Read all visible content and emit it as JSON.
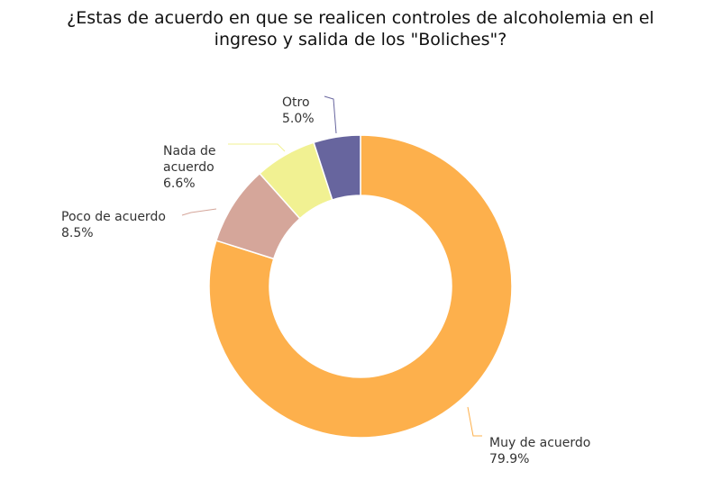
{
  "chart_data": {
    "type": "pie",
    "title_lines": [
      "¿Estas de acuerdo en que se realicen controles de alcoholemia en el",
      "ingreso y salida de los \"Boliches\"?"
    ],
    "donut": true,
    "slices": [
      {
        "label": "Muy de acuerdo",
        "value": 79.9,
        "value_label": "79.9%",
        "color": "#FDB04C"
      },
      {
        "label": "Poco de acuerdo",
        "value": 8.5,
        "value_label": "8.5%",
        "color": "#D5A69A"
      },
      {
        "label": "Nada de acuerdo",
        "label_lines": [
          "Nada de",
          "acuerdo"
        ],
        "value": 6.6,
        "value_label": "6.6%",
        "color": "#F1F192"
      },
      {
        "label": "Otro",
        "value": 5.0,
        "value_label": "5.0%",
        "color": "#67659E"
      }
    ]
  }
}
